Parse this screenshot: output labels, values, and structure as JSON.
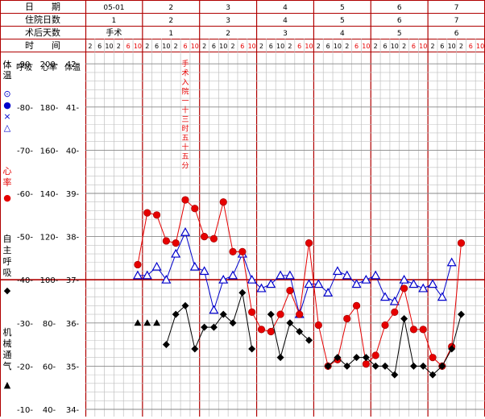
{
  "header": {
    "row_labels": [
      "日　　期",
      "住院日数",
      "术后天数",
      "时　　间"
    ],
    "dates": [
      "05-01",
      "2",
      "3",
      "4",
      "5",
      "6",
      "7"
    ],
    "hospital_days": [
      "1",
      "2",
      "3",
      "4",
      "5",
      "6",
      "7"
    ],
    "postop_days": [
      "手术",
      "1",
      "2",
      "3",
      "4",
      "5",
      "6"
    ],
    "hours": [
      "2",
      "6",
      "10",
      "2",
      "6",
      "10"
    ]
  },
  "axis_headers": {
    "resp": "呼吸",
    "pulse": "心率",
    "temp": "体温"
  },
  "side_labels": {
    "temp_title": "体温",
    "temp_symbols": "⊙ ● × △",
    "pulse_title": "心率",
    "pulse_symbol": "●",
    "resp_title": "自主呼吸",
    "resp_symbol": "◆",
    "vent_title": "机械通气",
    "vent_symbol": "▲"
  },
  "annotation": "手术入院一十三时五十五分",
  "colors": {
    "temp": "#0000cc",
    "pulse": "#e60000",
    "resp": "#000000",
    "border": "#b00000",
    "grid": "#c0c0c0"
  },
  "chart_data": {
    "type": "line",
    "x": [
      "05-01 2",
      "05-01 6",
      "05-01 10",
      "05-01 2",
      "05-01 6",
      "05-01 10",
      "2 2",
      "2 6",
      "2 10",
      "2 2",
      "2 6",
      "2 10",
      "3 2",
      "3 6",
      "3 10",
      "3 2",
      "3 6",
      "3 10",
      "4 2",
      "4 6",
      "4 10",
      "4 2",
      "4 6",
      "4 10",
      "5 2",
      "5 6",
      "5 10",
      "5 2",
      "5 6",
      "5 10",
      "6 2",
      "6 6",
      "6 10",
      "6 2",
      "6 6",
      "6 10",
      "7 2",
      "7 6",
      "7 10",
      "7 2",
      "7 6",
      "7 10"
    ],
    "axes": {
      "resp": {
        "ticks": [
          10,
          20,
          30,
          40,
          50,
          60,
          70,
          80,
          90
        ],
        "range": [
          10,
          90
        ]
      },
      "pulse": {
        "ticks": [
          40,
          60,
          80,
          100,
          120,
          140,
          160,
          180,
          200
        ],
        "range": [
          40,
          200
        ]
      },
      "temp": {
        "ticks": [
          34,
          35,
          36,
          37,
          38,
          39,
          40,
          41,
          42
        ],
        "range": [
          34,
          42
        ]
      }
    },
    "series": [
      {
        "name": "体温",
        "marker": "triangle",
        "values": [
          null,
          null,
          null,
          null,
          null,
          37.1,
          37.1,
          37.3,
          37.0,
          37.6,
          38.1,
          37.3,
          37.2,
          36.3,
          37.0,
          37.1,
          37.6,
          37.0,
          36.8,
          36.9,
          37.1,
          37.1,
          36.2,
          36.9,
          36.9,
          36.7,
          37.2,
          37.1,
          36.9,
          37.0,
          37.1,
          36.6,
          36.5,
          37.0,
          36.9,
          36.8,
          36.9,
          36.6,
          37.4,
          null,
          null,
          null
        ],
        "note": "blue open triangles with blue connecting line"
      },
      {
        "name": "心率",
        "marker": "circle",
        "values": [
          null,
          null,
          null,
          null,
          null,
          107,
          131,
          130,
          118,
          117,
          137,
          133,
          120,
          119,
          136,
          113,
          113,
          85,
          77,
          76,
          84,
          95,
          84,
          117,
          79,
          60,
          63,
          82,
          88,
          61,
          65,
          79,
          85,
          96,
          77,
          77,
          64,
          60,
          69,
          117,
          null,
          null
        ],
        "note": "red filled circles with red connecting line (pulse, in bpm)"
      },
      {
        "name": "自主呼吸",
        "marker": "diamond",
        "values": [
          null,
          null,
          null,
          null,
          null,
          null,
          null,
          null,
          25,
          32,
          34,
          24,
          29,
          29,
          32,
          30,
          37,
          24,
          null,
          32,
          22,
          30,
          28,
          26,
          null,
          20,
          22,
          20,
          22,
          22,
          20,
          20,
          18,
          31,
          20,
          20,
          18,
          20,
          24,
          32,
          null,
          null
        ],
        "note": "black filled diamonds with black connecting line"
      },
      {
        "name": "机械通气",
        "marker": "filled-triangle",
        "values": [
          null,
          null,
          null,
          null,
          null,
          30,
          30,
          30,
          null,
          null,
          null,
          null,
          null,
          null,
          null,
          null,
          null,
          null,
          null,
          null,
          null,
          null,
          null,
          null,
          null,
          null,
          null,
          null,
          null,
          null,
          null,
          null,
          null,
          null,
          null,
          null,
          null,
          null,
          null,
          null,
          null,
          null
        ],
        "note": "black filled triangles"
      }
    ]
  }
}
